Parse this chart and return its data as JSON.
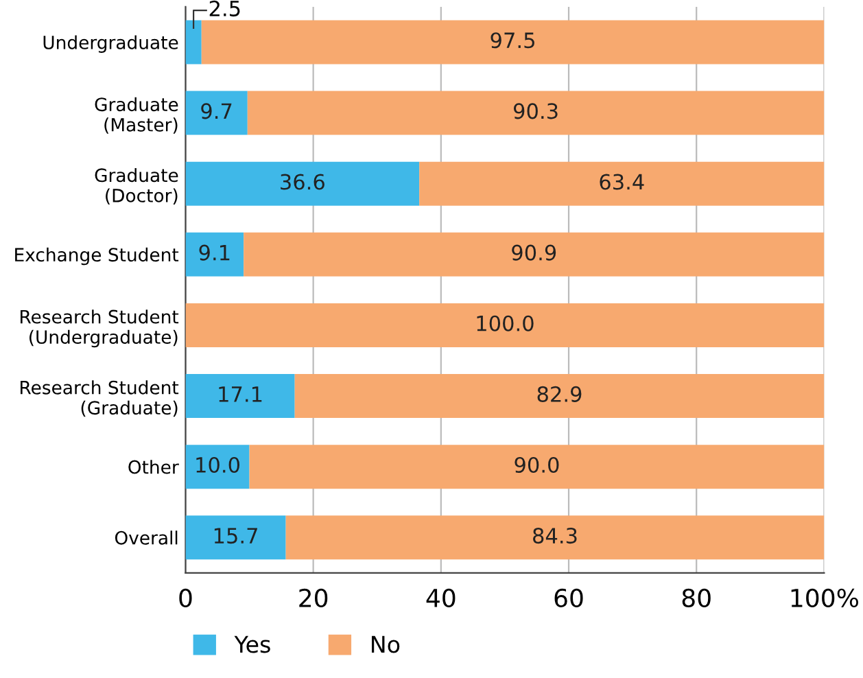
{
  "chart_data": {
    "type": "bar",
    "orientation": "horizontal",
    "stacked": true,
    "categories": [
      "Undergraduate",
      "Graduate\n(Master)",
      "Graduate\n(Doctor)",
      "Exchange Student",
      "Research Student\n(Undergraduate)",
      "Research Student\n(Graduate)",
      "Other",
      "Overall"
    ],
    "series": [
      {
        "name": "Yes",
        "color": "#3fb8e8",
        "values": [
          2.5,
          9.7,
          36.6,
          9.1,
          0,
          17.1,
          10.0,
          15.7
        ],
        "value_labels": [
          "2.5",
          "9.7",
          "36.6",
          "9.1",
          null,
          "17.1",
          "10.0",
          "15.7"
        ]
      },
      {
        "name": "No",
        "color": "#f7a96f",
        "values": [
          97.5,
          90.3,
          63.4,
          90.9,
          100.0,
          82.9,
          90.0,
          84.3
        ],
        "value_labels": [
          "97.5",
          "90.3",
          "63.4",
          "90.9",
          "100.0",
          "82.9",
          "90.0",
          "84.3"
        ]
      }
    ],
    "xlim": [
      0,
      100
    ],
    "xticks": [
      0,
      20,
      40,
      60,
      80,
      {
        "value": 100,
        "label": "100%"
      }
    ],
    "grid": "x",
    "legend": "bottom left"
  }
}
